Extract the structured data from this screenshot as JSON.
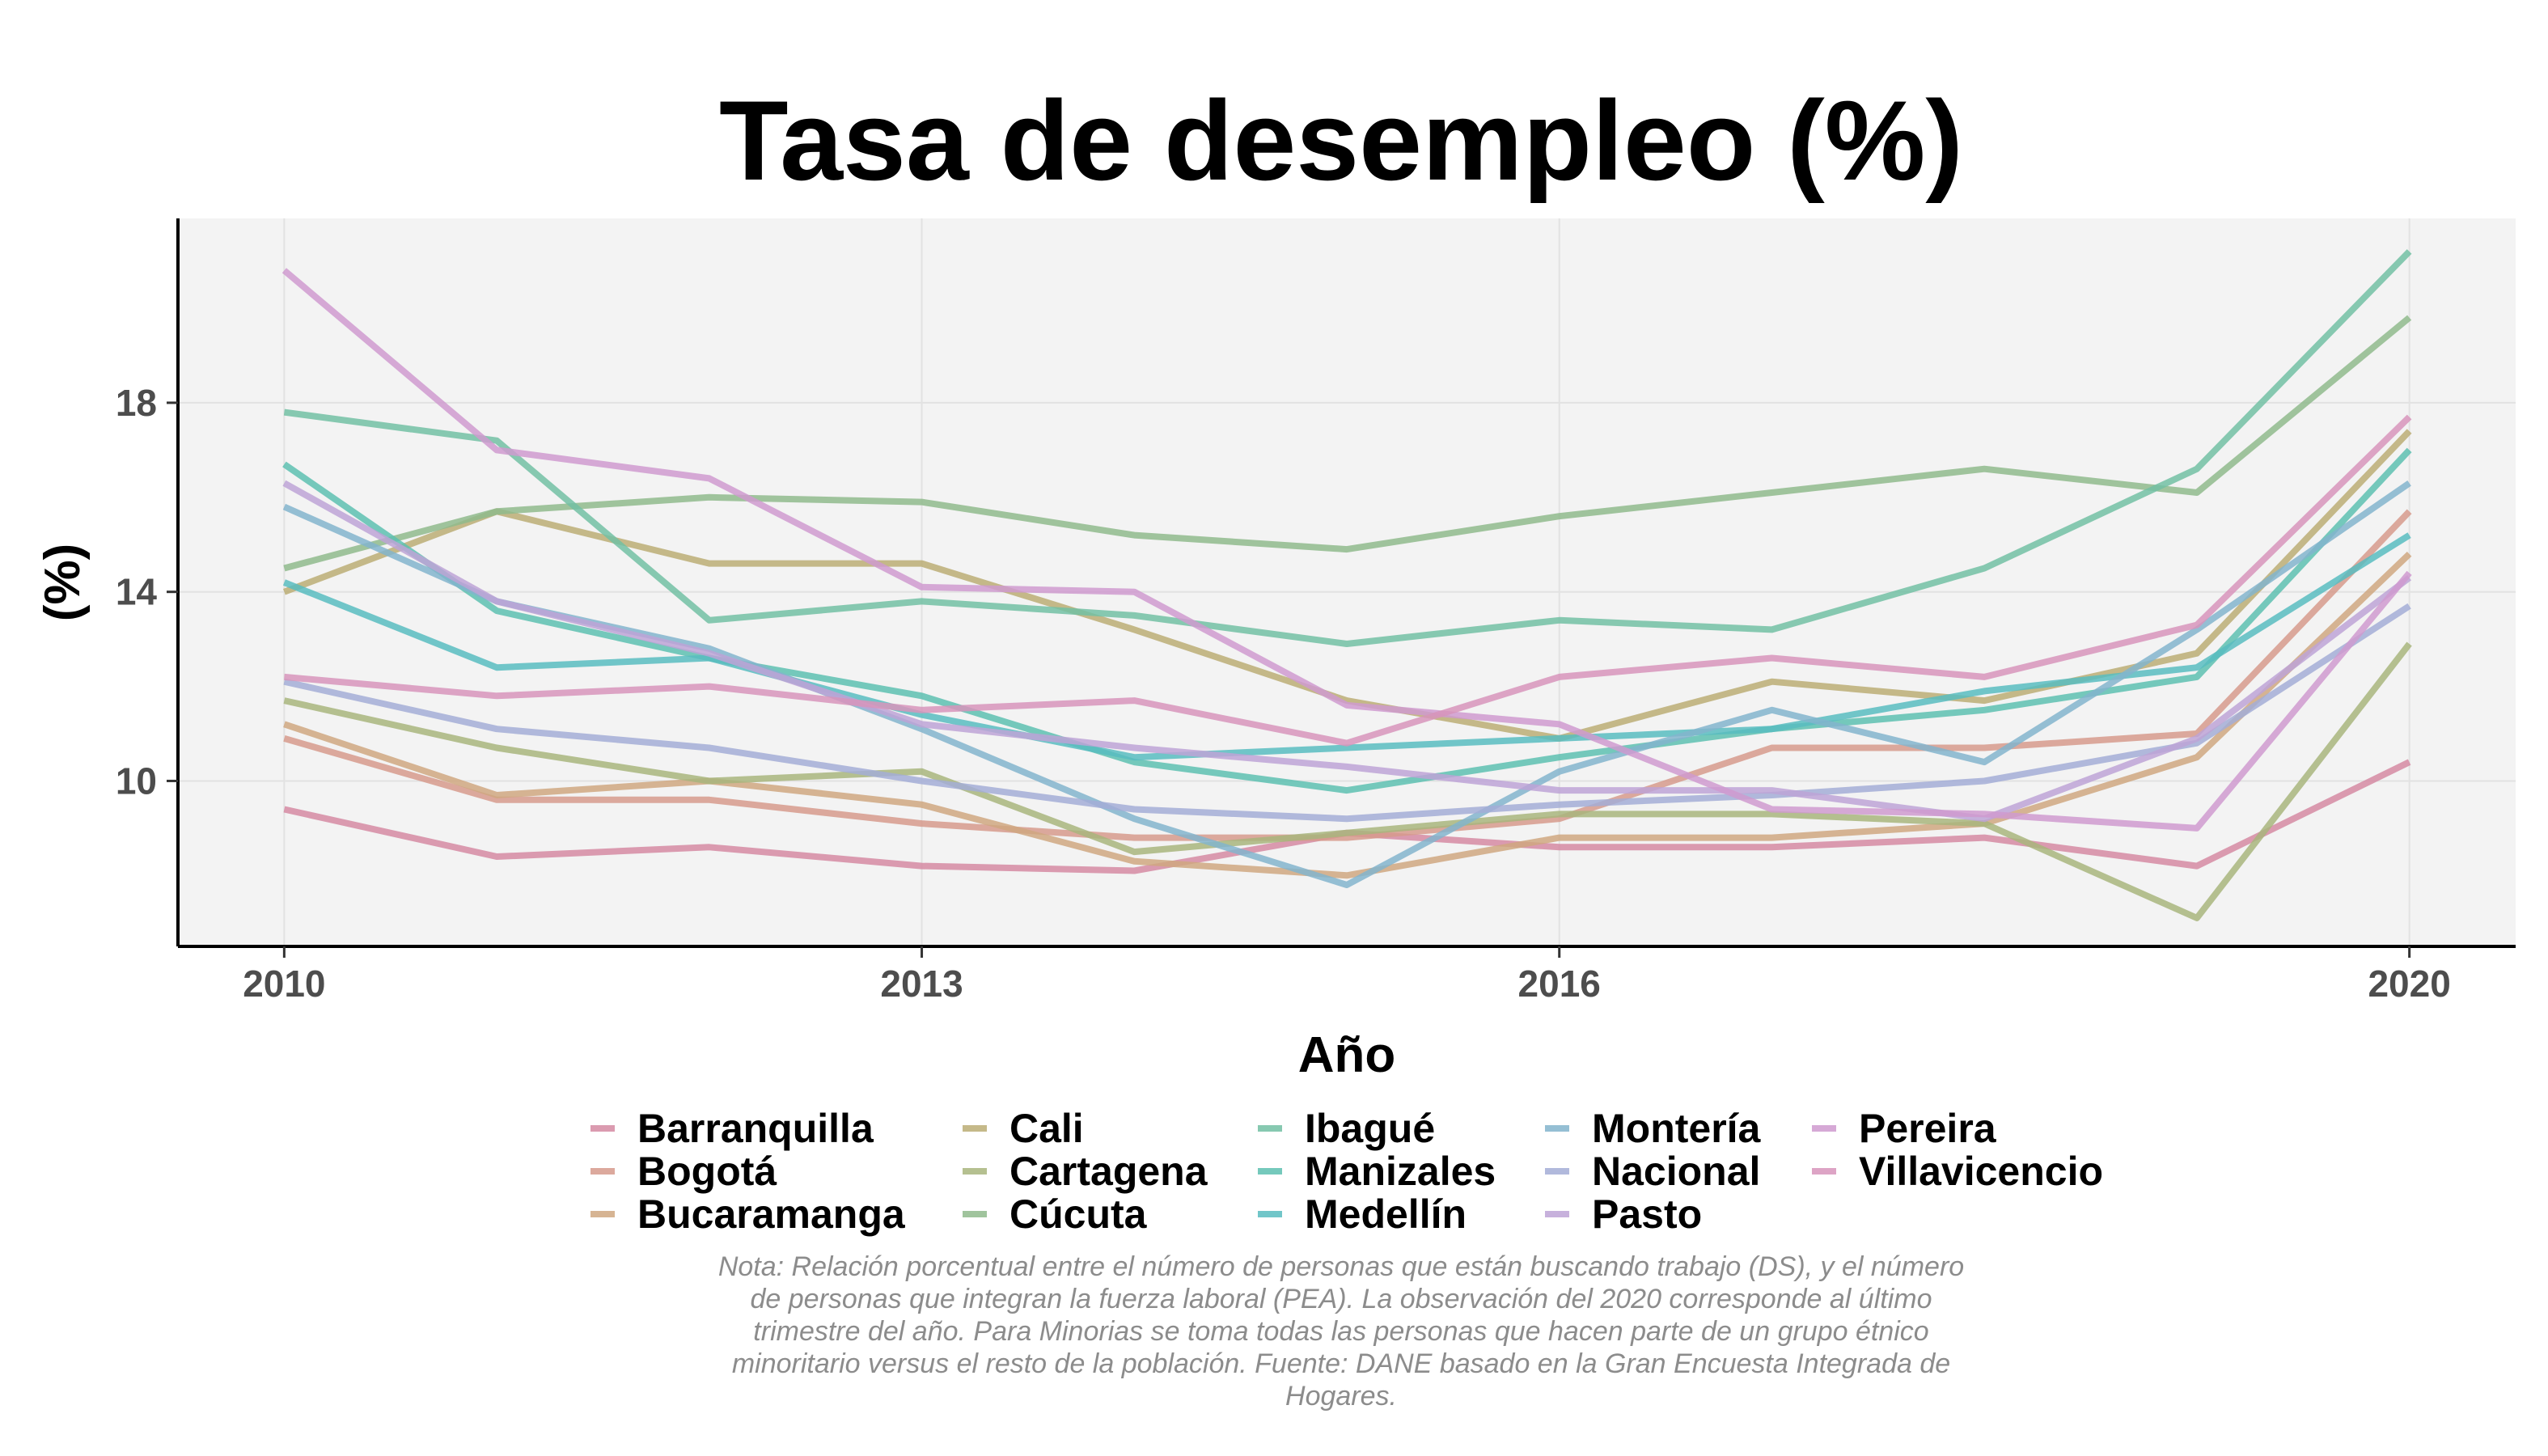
{
  "chart_data": {
    "type": "line",
    "title": "Tasa de desempleo (%)",
    "xlabel": "Año",
    "ylabel": "(%)",
    "x": [
      2010,
      2011,
      2012,
      2013,
      2014,
      2015,
      2016,
      2017,
      2018,
      2019,
      2020
    ],
    "x_ticks": [
      "2010",
      "2013",
      "2016",
      "2020"
    ],
    "y_ticks": [
      "10",
      "14",
      "18"
    ],
    "xlim": [
      2009.5,
      2020.5
    ],
    "ylim": [
      6.5,
      21.9
    ],
    "grid": true,
    "legend_position": "bottom",
    "series": [
      {
        "name": "Barranquilla",
        "color": "#D58AA2",
        "values": [
          9.4,
          8.4,
          8.6,
          8.2,
          8.1,
          8.9,
          8.6,
          8.6,
          8.8,
          8.2,
          10.4
        ]
      },
      {
        "name": "Bogotá",
        "color": "#D69A8C",
        "values": [
          10.9,
          9.6,
          9.6,
          9.1,
          8.8,
          8.8,
          9.2,
          10.7,
          10.7,
          11.0,
          15.7
        ]
      },
      {
        "name": "Bucaramanga",
        "color": "#CFA780",
        "values": [
          11.2,
          9.7,
          10.0,
          9.5,
          8.3,
          8.0,
          8.8,
          8.8,
          9.1,
          10.5,
          14.8
        ]
      },
      {
        "name": "Cali",
        "color": "#BBAD74",
        "values": [
          14.0,
          15.7,
          14.6,
          14.6,
          13.2,
          11.7,
          10.9,
          12.1,
          11.7,
          12.7,
          17.4
        ]
      },
      {
        "name": "Cartagena",
        "color": "#A8B57C",
        "values": [
          11.7,
          10.7,
          10.0,
          10.2,
          8.5,
          8.9,
          9.3,
          9.3,
          9.1,
          7.1,
          12.9
        ]
      },
      {
        "name": "Cúcuta",
        "color": "#8FBA8C",
        "values": [
          14.5,
          15.7,
          16.0,
          15.9,
          15.2,
          14.9,
          15.6,
          16.1,
          16.6,
          16.1,
          19.8
        ]
      },
      {
        "name": "Ibagué",
        "color": "#72BFA3",
        "values": [
          17.8,
          17.2,
          13.4,
          13.8,
          13.5,
          12.9,
          13.4,
          13.2,
          14.5,
          16.6,
          21.2
        ]
      },
      {
        "name": "Manizales",
        "color": "#5DBFB0",
        "values": [
          16.7,
          13.6,
          12.6,
          11.8,
          10.4,
          9.8,
          10.5,
          11.1,
          11.5,
          12.2,
          17.0
        ]
      },
      {
        "name": "Medellín",
        "color": "#58BCC0",
        "values": [
          14.2,
          12.4,
          12.6,
          11.4,
          10.5,
          10.7,
          10.9,
          11.1,
          11.9,
          12.4,
          15.2
        ]
      },
      {
        "name": "Montería",
        "color": "#82B4CC",
        "values": [
          15.8,
          13.8,
          12.8,
          11.1,
          9.2,
          7.8,
          10.2,
          11.5,
          10.4,
          13.2,
          16.3
        ]
      },
      {
        "name": "Nacional",
        "color": "#A3ADD6",
        "values": [
          12.1,
          11.1,
          10.7,
          10.0,
          9.4,
          9.2,
          9.5,
          9.7,
          10.0,
          10.8,
          13.7
        ]
      },
      {
        "name": "Pasto",
        "color": "#BDA3D6",
        "values": [
          16.3,
          13.8,
          12.7,
          11.2,
          10.7,
          10.3,
          9.8,
          9.8,
          9.2,
          10.9,
          14.3
        ]
      },
      {
        "name": "Pereira",
        "color": "#CF9ACF",
        "values": [
          20.8,
          17.0,
          16.4,
          14.1,
          14.0,
          11.6,
          11.2,
          9.4,
          9.3,
          9.0,
          14.4
        ]
      },
      {
        "name": "Villavicencio",
        "color": "#D794BB",
        "values": [
          12.2,
          11.8,
          12.0,
          11.5,
          11.7,
          10.8,
          12.2,
          12.6,
          12.2,
          13.3,
          17.7
        ]
      }
    ]
  },
  "caption": {
    "lines": [
      "Nota: Relación porcentual entre el número de personas que están buscando trabajo (DS), y el número",
      "de personas que integran la fuerza laboral (PEA). La observación del 2020 corresponde al último",
      "trimestre del año. Para Minorias se toma todas las personas que hacen parte de un grupo étnico",
      "minoritario versus el resto de la población. Fuente: DANE basado en la Gran Encuesta Integrada de",
      "Hogares."
    ]
  }
}
